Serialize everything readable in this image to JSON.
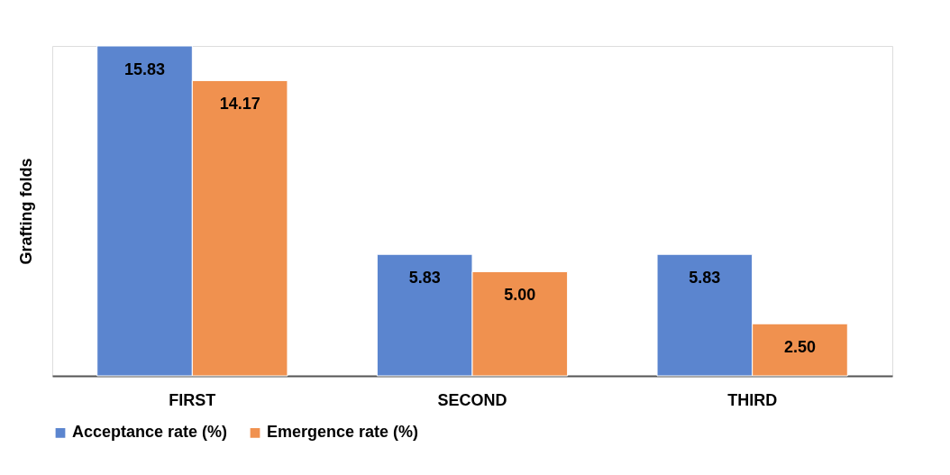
{
  "chart_data": {
    "type": "bar",
    "ylabel": "Grafting folds",
    "categories": [
      "FIRST",
      "SECOND",
      "THIRD"
    ],
    "series": [
      {
        "name": "Acceptance rate (%)",
        "color": "#5b85cf",
        "values": [
          15.83,
          5.83,
          5.83
        ],
        "value_labels": [
          "15.83",
          "5.83",
          "5.83"
        ]
      },
      {
        "name": "Emergence rate (%)",
        "color": "#f0914f",
        "values": [
          14.17,
          5.0,
          2.5
        ],
        "value_labels": [
          "14.17",
          "5.00",
          "2.50"
        ]
      }
    ],
    "legend": "bottom",
    "grid": false
  }
}
